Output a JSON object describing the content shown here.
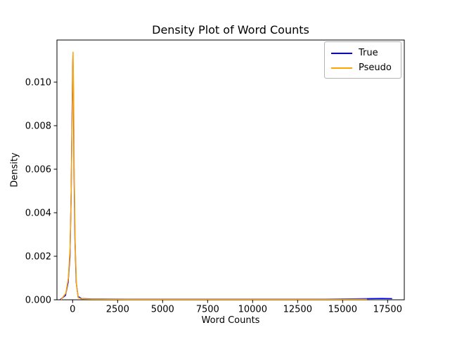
{
  "figure": {
    "background": "#ffffff"
  },
  "chart_data": {
    "type": "line",
    "title": "Density Plot of Word Counts",
    "xlabel": "Word Counts",
    "ylabel": "Density",
    "xlim": [
      -871,
      18426
    ],
    "ylim": [
      0,
      0.011935
    ],
    "grid": false,
    "xticks": {
      "values": [
        0,
        2500,
        5000,
        7500,
        10000,
        12500,
        15000,
        17500
      ],
      "labels": [
        "0",
        "2500",
        "5000",
        "7500",
        "10000",
        "12500",
        "15000",
        "17500"
      ]
    },
    "yticks": {
      "values": [
        0.0,
        0.002,
        0.004,
        0.006,
        0.008,
        0.01
      ],
      "labels": [
        "0.000",
        "0.002",
        "0.004",
        "0.006",
        "0.008",
        "0.010"
      ]
    },
    "legend": {
      "position": "upper right",
      "entries": [
        "True",
        "Pseudo"
      ]
    },
    "series": [
      {
        "name": "True",
        "color": "#0000ff",
        "points": [
          [
            -700,
            0.0
          ],
          [
            -400,
            0.0002
          ],
          [
            -250,
            0.0008
          ],
          [
            -150,
            0.002
          ],
          [
            -80,
            0.0048
          ],
          [
            -30,
            0.0085
          ],
          [
            0,
            0.0106
          ],
          [
            15,
            0.0112
          ],
          [
            40,
            0.0098
          ],
          [
            80,
            0.006
          ],
          [
            130,
            0.0028
          ],
          [
            200,
            0.0008
          ],
          [
            300,
            0.00015
          ],
          [
            500,
            5e-05
          ],
          [
            1000,
            4e-05
          ],
          [
            3000,
            3e-05
          ],
          [
            8000,
            3e-05
          ],
          [
            14000,
            3e-05
          ],
          [
            16500,
            5e-05
          ],
          [
            17200,
            6e-05
          ],
          [
            17750,
            5e-05
          ]
        ]
      },
      {
        "name": "Pseudo",
        "color": "#ffa500",
        "points": [
          [
            -650,
            0.0
          ],
          [
            -380,
            0.0003
          ],
          [
            -240,
            0.001
          ],
          [
            -140,
            0.0024
          ],
          [
            -70,
            0.0055
          ],
          [
            -20,
            0.009
          ],
          [
            10,
            0.0109
          ],
          [
            25,
            0.01138
          ],
          [
            50,
            0.0096
          ],
          [
            90,
            0.0058
          ],
          [
            140,
            0.0026
          ],
          [
            210,
            0.0007
          ],
          [
            310,
            0.0001
          ],
          [
            500,
            4e-05
          ],
          [
            1000,
            3e-05
          ],
          [
            3000,
            2e-05
          ],
          [
            8000,
            2e-05
          ],
          [
            12000,
            2e-05
          ],
          [
            16350,
            2e-05
          ]
        ]
      }
    ]
  }
}
